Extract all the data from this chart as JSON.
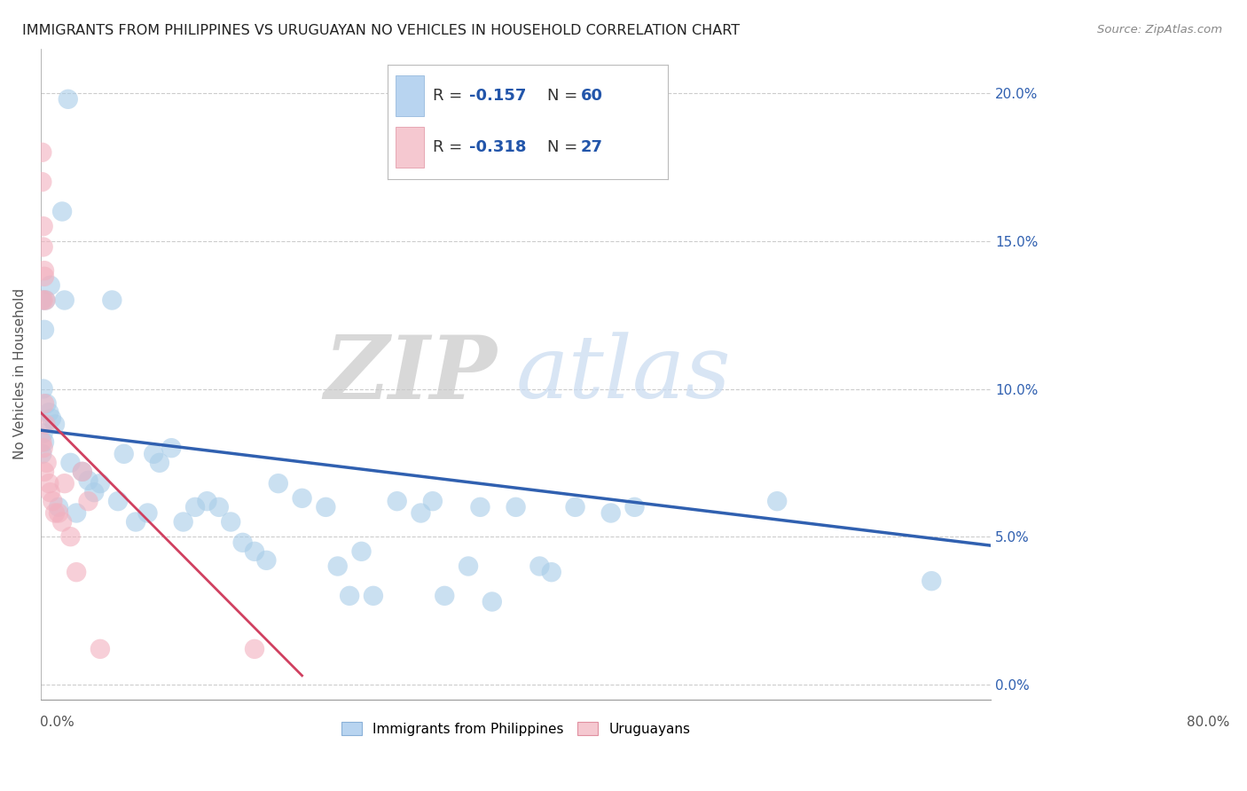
{
  "title": "IMMIGRANTS FROM PHILIPPINES VS URUGUAYAN NO VEHICLES IN HOUSEHOLD CORRELATION CHART",
  "source": "Source: ZipAtlas.com",
  "ylabel": "No Vehicles in Household",
  "ytick_values": [
    0.0,
    0.05,
    0.1,
    0.15,
    0.2
  ],
  "xlim": [
    0.0,
    0.8
  ],
  "ylim": [
    -0.005,
    0.215
  ],
  "legend_r1": "R = -0.157",
  "legend_n1": "N = 60",
  "legend_r2": "R = -0.318",
  "legend_n2": "N = 27",
  "color_blue": "#a8cce8",
  "color_pink": "#f2b0be",
  "color_blue_line": "#3060b0",
  "color_pink_line": "#d04060",
  "watermark_zip": "ZIP",
  "watermark_atlas": "atlas",
  "scatter_blue_x": [
    0.023,
    0.018,
    0.008,
    0.004,
    0.003,
    0.002,
    0.001,
    0.002,
    0.003,
    0.001,
    0.005,
    0.007,
    0.009,
    0.012,
    0.015,
    0.02,
    0.025,
    0.03,
    0.035,
    0.04,
    0.045,
    0.05,
    0.06,
    0.065,
    0.07,
    0.08,
    0.09,
    0.095,
    0.1,
    0.11,
    0.12,
    0.13,
    0.14,
    0.15,
    0.16,
    0.17,
    0.18,
    0.19,
    0.2,
    0.22,
    0.24,
    0.25,
    0.26,
    0.27,
    0.28,
    0.3,
    0.32,
    0.33,
    0.34,
    0.36,
    0.37,
    0.38,
    0.4,
    0.42,
    0.43,
    0.45,
    0.48,
    0.5,
    0.62,
    0.75
  ],
  "scatter_blue_y": [
    0.198,
    0.16,
    0.135,
    0.13,
    0.12,
    0.1,
    0.13,
    0.085,
    0.082,
    0.078,
    0.095,
    0.092,
    0.09,
    0.088,
    0.06,
    0.13,
    0.075,
    0.058,
    0.072,
    0.069,
    0.065,
    0.068,
    0.13,
    0.062,
    0.078,
    0.055,
    0.058,
    0.078,
    0.075,
    0.08,
    0.055,
    0.06,
    0.062,
    0.06,
    0.055,
    0.048,
    0.045,
    0.042,
    0.068,
    0.063,
    0.06,
    0.04,
    0.03,
    0.045,
    0.03,
    0.062,
    0.058,
    0.062,
    0.03,
    0.04,
    0.06,
    0.028,
    0.06,
    0.04,
    0.038,
    0.06,
    0.058,
    0.06,
    0.062,
    0.035
  ],
  "scatter_pink_x": [
    0.001,
    0.001,
    0.002,
    0.002,
    0.002,
    0.003,
    0.003,
    0.003,
    0.004,
    0.004,
    0.001,
    0.002,
    0.005,
    0.003,
    0.007,
    0.008,
    0.01,
    0.012,
    0.015,
    0.018,
    0.02,
    0.025,
    0.03,
    0.035,
    0.04,
    0.05,
    0.18
  ],
  "scatter_pink_y": [
    0.18,
    0.17,
    0.155,
    0.148,
    0.13,
    0.14,
    0.138,
    0.095,
    0.088,
    0.13,
    0.082,
    0.08,
    0.075,
    0.072,
    0.068,
    0.065,
    0.062,
    0.058,
    0.058,
    0.055,
    0.068,
    0.05,
    0.038,
    0.072,
    0.062,
    0.012,
    0.012
  ],
  "blue_line_x": [
    0.0,
    0.8
  ],
  "blue_line_y": [
    0.086,
    0.047
  ],
  "pink_line_x": [
    0.0,
    0.22
  ],
  "pink_line_y": [
    0.092,
    0.003
  ]
}
